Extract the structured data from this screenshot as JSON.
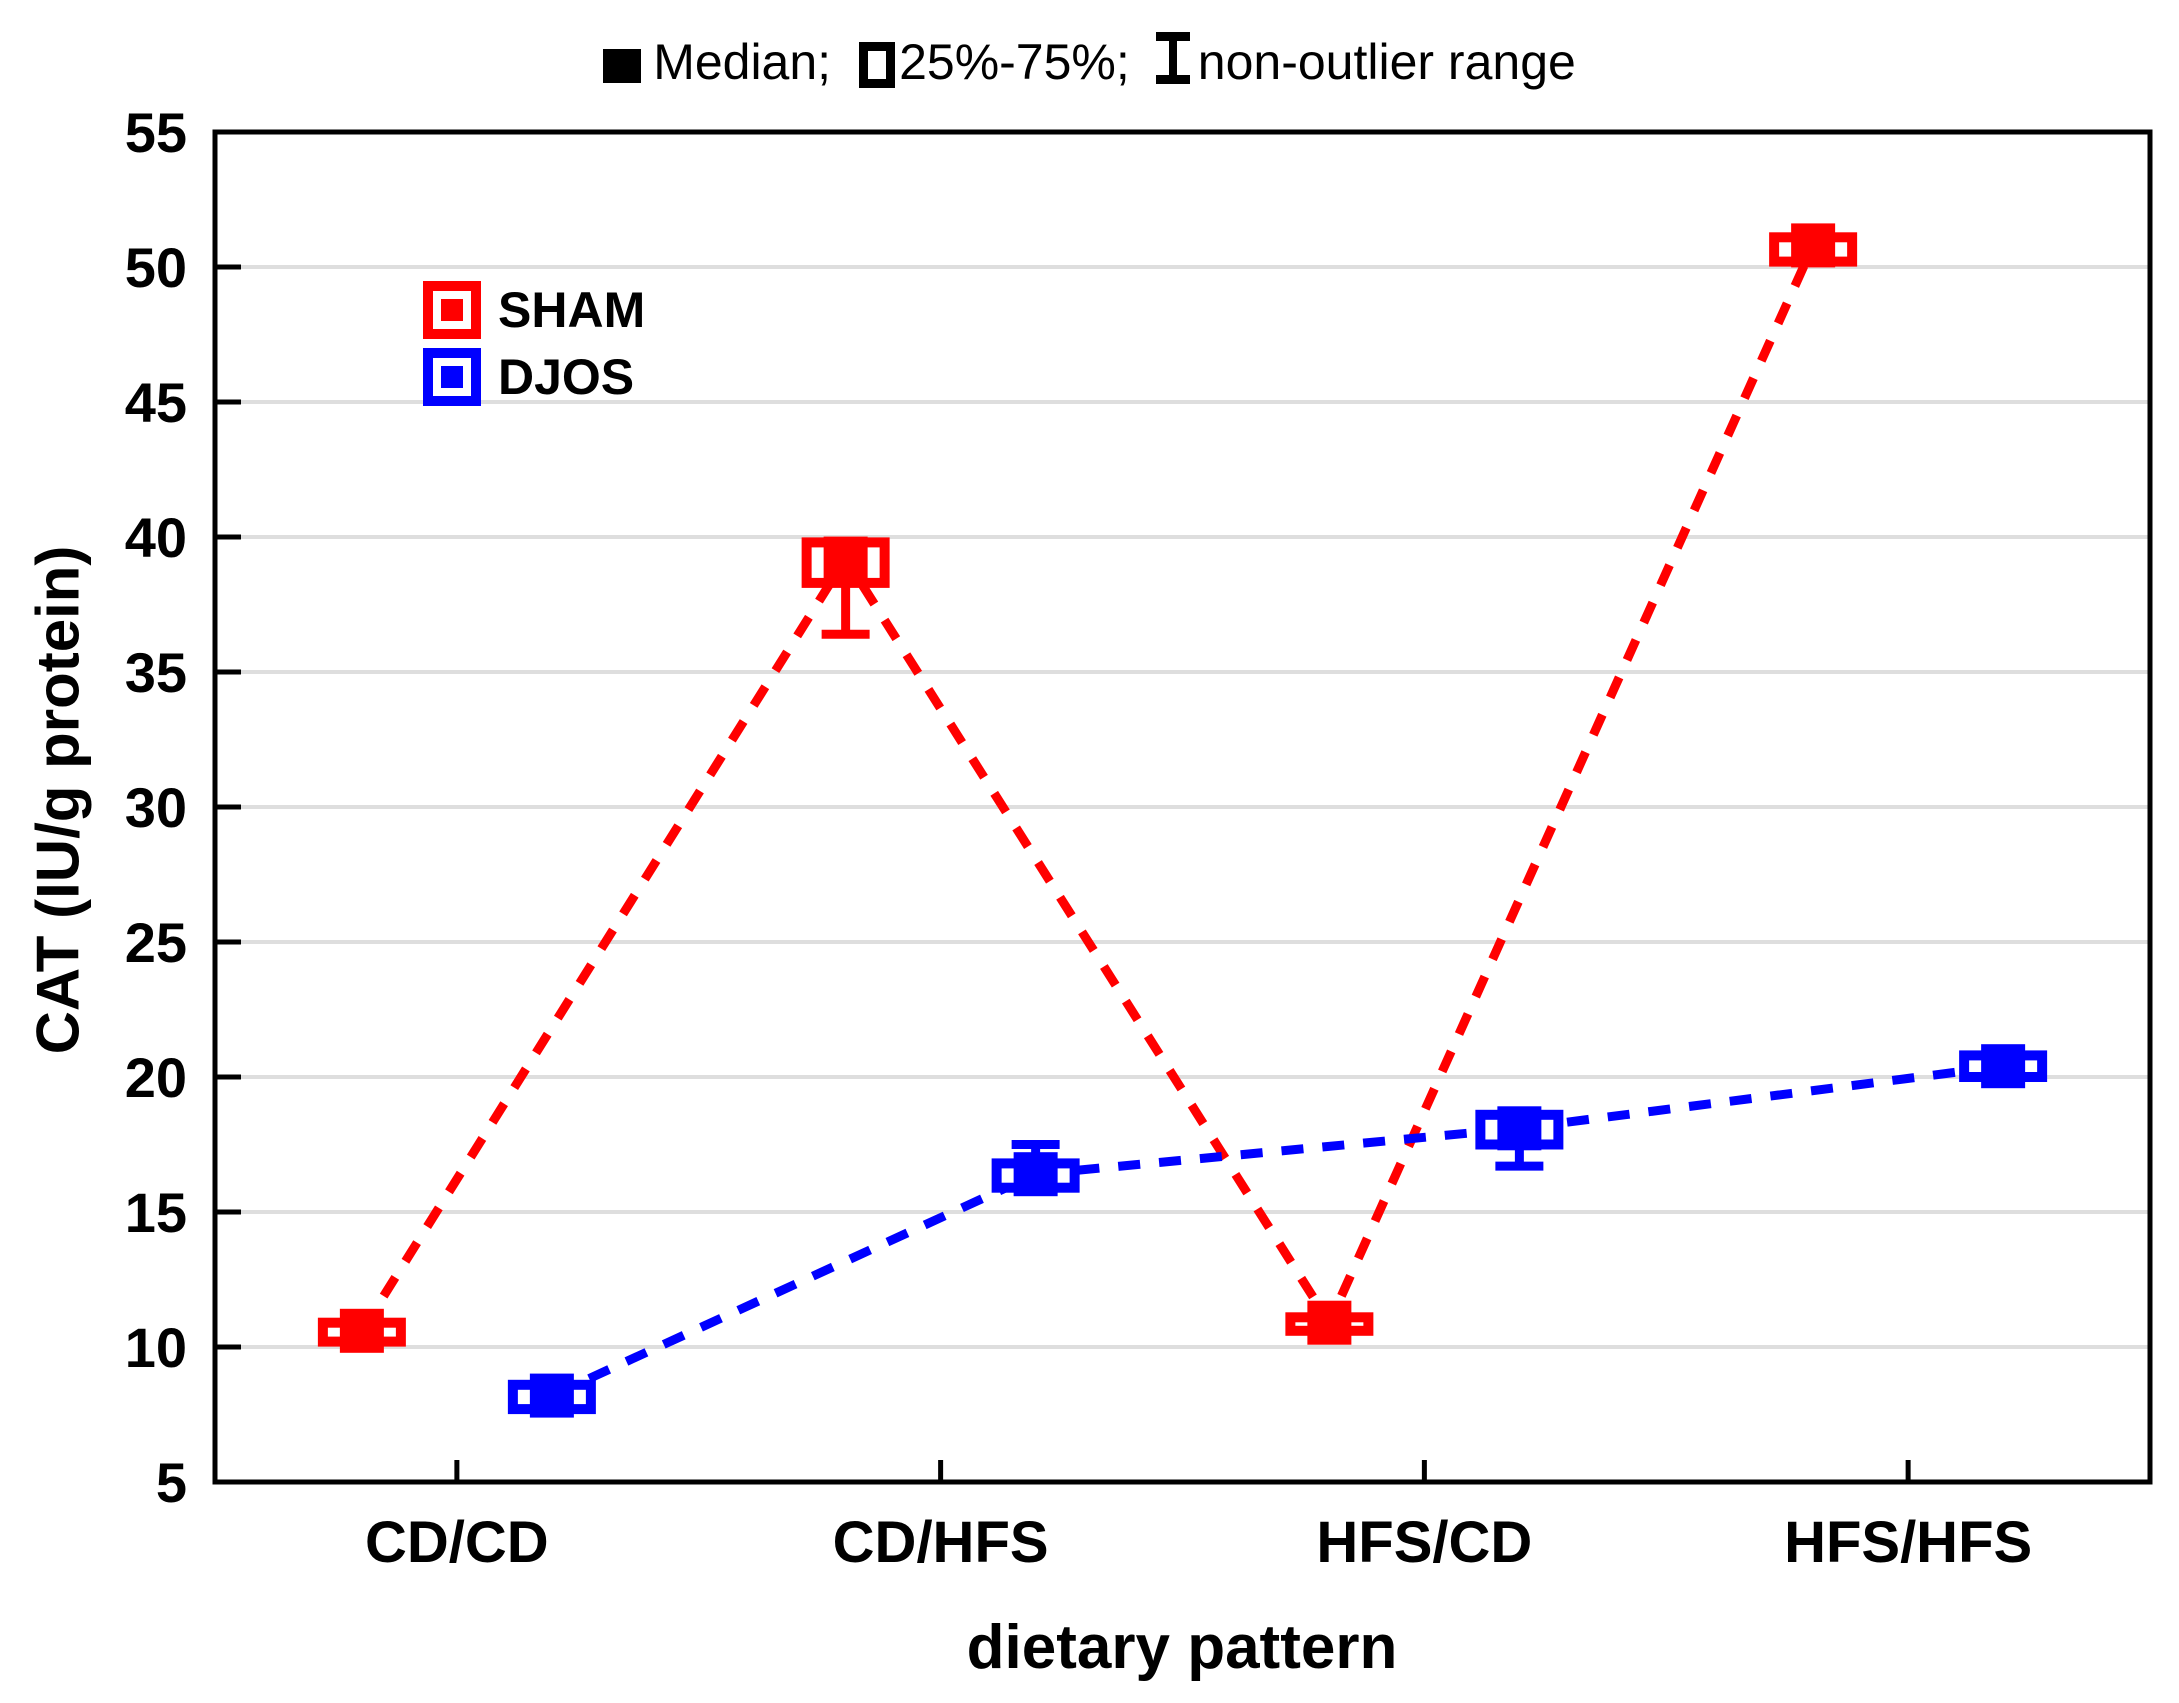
{
  "chart_data": {
    "type": "boxplot",
    "symbol_legend": {
      "median_icon": "filled-square-icon",
      "median_label": "Median;",
      "box_icon": "open-square-icon",
      "box_label": "25%-75%;",
      "whisker_icon": "error-bar-icon",
      "whisker_label": "non-outlier range"
    },
    "xlabel": "dietary pattern",
    "ylabel": "CAT (IU/g protein)",
    "ylim": [
      5,
      55
    ],
    "ytick_step": 5,
    "yticks": [
      5,
      10,
      15,
      20,
      25,
      30,
      35,
      40,
      45,
      50,
      55
    ],
    "grid": true,
    "legend_position": "upper-left-inside",
    "categories": [
      "CD/CD",
      "CD/HFS",
      "HFS/CD",
      "HFS/HFS"
    ],
    "colors": {
      "sham": "#FF0000",
      "djos": "#0000FF",
      "gridline": "#DEDEDE",
      "frame": "#000000"
    },
    "series": [
      {
        "name": "SHAM",
        "color": "#FF0000",
        "points": [
          {
            "category": "CD/CD",
            "median": 10.6,
            "q1": 10.2,
            "q3": 10.9,
            "whisker_low": 10.2,
            "whisker_high": 10.9
          },
          {
            "category": "CD/HFS",
            "median": 39.2,
            "q1": 38.3,
            "q3": 39.8,
            "whisker_low": 36.4,
            "whisker_high": 39.8
          },
          {
            "category": "HFS/CD",
            "median": 10.9,
            "q1": 10.6,
            "q3": 11.1,
            "whisker_low": 10.6,
            "whisker_high": 11.1
          },
          {
            "category": "HFS/HFS",
            "median": 50.8,
            "q1": 50.2,
            "q3": 51.1,
            "whisker_low": 50.2,
            "whisker_high": 51.1
          }
        ]
      },
      {
        "name": "DJOS",
        "color": "#0000FF",
        "points": [
          {
            "category": "CD/CD",
            "median": 8.2,
            "q1": 7.7,
            "q3": 8.6,
            "whisker_low": 7.7,
            "whisker_high": 8.6
          },
          {
            "category": "CD/HFS",
            "median": 16.4,
            "q1": 15.9,
            "q3": 16.8,
            "whisker_low": 15.9,
            "whisker_high": 17.5
          },
          {
            "category": "HFS/CD",
            "median": 18.1,
            "q1": 17.5,
            "q3": 18.6,
            "whisker_low": 16.7,
            "whisker_high": 18.6
          },
          {
            "category": "HFS/HFS",
            "median": 20.4,
            "q1": 20.0,
            "q3": 20.8,
            "whisker_low": 20.0,
            "whisker_high": 20.8
          }
        ]
      }
    ]
  }
}
